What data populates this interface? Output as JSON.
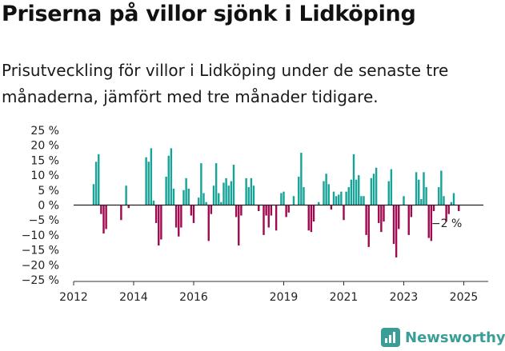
{
  "title": "Priserna på villor sjönk i Lidköping",
  "subtitle": "Prisutveckling för villor i Lidköping under de senaste tre månaderna, jämfört med tre månader tidigare.",
  "brand": "Newsworthy",
  "colors": {
    "positive": "#17a398",
    "negative": "#a0094f",
    "axis": "#333333",
    "grid": "#d9d9d9"
  },
  "chart_data": {
    "type": "bar",
    "title": "",
    "xlabel": "",
    "ylabel": "",
    "ylim": [
      -25,
      25
    ],
    "y_ticks": [
      25,
      20,
      15,
      10,
      5,
      0,
      -5,
      -10,
      -15,
      -20,
      -25
    ],
    "y_tick_suffix": " %",
    "x_ticks": [
      "2012",
      "2014",
      "2016",
      "2019",
      "2021",
      "2023",
      "2025"
    ],
    "x_tick_dates": [
      "2012-01",
      "2014-01",
      "2016-01",
      "2019-01",
      "2021-01",
      "2023-01",
      "2025-01"
    ],
    "grid": false,
    "end_label": "−2 %",
    "series": [
      {
        "values": [
          [
            "2012-09",
            7
          ],
          [
            "2012-10",
            14.5
          ],
          [
            "2012-11",
            17
          ],
          [
            "2012-12",
            -3
          ],
          [
            "2013-01",
            -9.5
          ],
          [
            "2013-02",
            -8
          ],
          [
            "2013-08",
            -5
          ],
          [
            "2013-10",
            6.5
          ],
          [
            "2013-11",
            -1
          ],
          [
            "2014-06",
            16
          ],
          [
            "2014-07",
            14.5
          ],
          [
            "2014-08",
            19
          ],
          [
            "2014-09",
            1.5
          ],
          [
            "2014-10",
            -6
          ],
          [
            "2014-11",
            -13.5
          ],
          [
            "2014-12",
            -11.5
          ],
          [
            "2015-02",
            9.5
          ],
          [
            "2015-03",
            16.5
          ],
          [
            "2015-04",
            19
          ],
          [
            "2015-05",
            5.5
          ],
          [
            "2015-06",
            -7.5
          ],
          [
            "2015-07",
            -10.5
          ],
          [
            "2015-08",
            -7.5
          ],
          [
            "2015-09",
            5
          ],
          [
            "2015-10",
            9
          ],
          [
            "2015-11",
            5.5
          ],
          [
            "2015-12",
            -3.5
          ],
          [
            "2016-01",
            -6
          ],
          [
            "2016-03",
            2.5
          ],
          [
            "2016-04",
            14
          ],
          [
            "2016-05",
            4
          ],
          [
            "2016-06",
            1
          ],
          [
            "2016-07",
            -12
          ],
          [
            "2016-08",
            -3
          ],
          [
            "2016-09",
            6.5
          ],
          [
            "2016-10",
            14
          ],
          [
            "2016-11",
            4
          ],
          [
            "2016-12",
            1
          ],
          [
            "2017-01",
            7.5
          ],
          [
            "2017-02",
            9
          ],
          [
            "2017-03",
            6.5
          ],
          [
            "2017-04",
            8
          ],
          [
            "2017-05",
            13.5
          ],
          [
            "2017-06",
            -4
          ],
          [
            "2017-07",
            -13.5
          ],
          [
            "2017-08",
            -3.5
          ],
          [
            "2017-10",
            9
          ],
          [
            "2017-11",
            6
          ],
          [
            "2017-12",
            9
          ],
          [
            "2018-01",
            6.5
          ],
          [
            "2018-03",
            -2
          ],
          [
            "2018-05",
            -10
          ],
          [
            "2018-06",
            -3.5
          ],
          [
            "2018-07",
            -7.5
          ],
          [
            "2018-08",
            -3.5
          ],
          [
            "2018-10",
            -8.5
          ],
          [
            "2018-12",
            4
          ],
          [
            "2019-01",
            4.5
          ],
          [
            "2019-02",
            -4
          ],
          [
            "2019-03",
            -2.5
          ],
          [
            "2019-05",
            3
          ],
          [
            "2019-07",
            9.5
          ],
          [
            "2019-08",
            17.5
          ],
          [
            "2019-09",
            6
          ],
          [
            "2019-11",
            -8.5
          ],
          [
            "2019-12",
            -9
          ],
          [
            "2020-01",
            -5.5
          ],
          [
            "2020-03",
            1
          ],
          [
            "2020-05",
            8
          ],
          [
            "2020-06",
            10.5
          ],
          [
            "2020-07",
            7
          ],
          [
            "2020-08",
            -1.5
          ],
          [
            "2020-09",
            4.5
          ],
          [
            "2020-10",
            3
          ],
          [
            "2020-11",
            3.5
          ],
          [
            "2020-12",
            4.5
          ],
          [
            "2021-01",
            -5
          ],
          [
            "2021-02",
            4.5
          ],
          [
            "2021-03",
            6
          ],
          [
            "2021-04",
            8.5
          ],
          [
            "2021-05",
            17
          ],
          [
            "2021-06",
            8.5
          ],
          [
            "2021-07",
            10
          ],
          [
            "2021-08",
            3
          ],
          [
            "2021-09",
            3
          ],
          [
            "2021-10",
            -10
          ],
          [
            "2021-11",
            -14
          ],
          [
            "2021-12",
            9
          ],
          [
            "2022-01",
            10.5
          ],
          [
            "2022-02",
            12.5
          ],
          [
            "2022-03",
            -6
          ],
          [
            "2022-04",
            -9
          ],
          [
            "2022-05",
            -5.5
          ],
          [
            "2022-07",
            8
          ],
          [
            "2022-08",
            12
          ],
          [
            "2022-09",
            -13
          ],
          [
            "2022-10",
            -17.5
          ],
          [
            "2022-11",
            -8
          ],
          [
            "2023-01",
            3
          ],
          [
            "2023-03",
            -10
          ],
          [
            "2023-04",
            -4
          ],
          [
            "2023-06",
            11
          ],
          [
            "2023-07",
            8.5
          ],
          [
            "2023-08",
            2
          ],
          [
            "2023-09",
            11
          ],
          [
            "2023-10",
            6
          ],
          [
            "2023-11",
            -11
          ],
          [
            "2023-12",
            -12
          ],
          [
            "2024-01",
            -2
          ],
          [
            "2024-03",
            6
          ],
          [
            "2024-04",
            11.5
          ],
          [
            "2024-05",
            3
          ],
          [
            "2024-06",
            -5.5
          ],
          [
            "2024-07",
            -3
          ],
          [
            "2024-08",
            1
          ],
          [
            "2024-09",
            4
          ],
          [
            "2024-11",
            -2
          ]
        ]
      }
    ]
  }
}
